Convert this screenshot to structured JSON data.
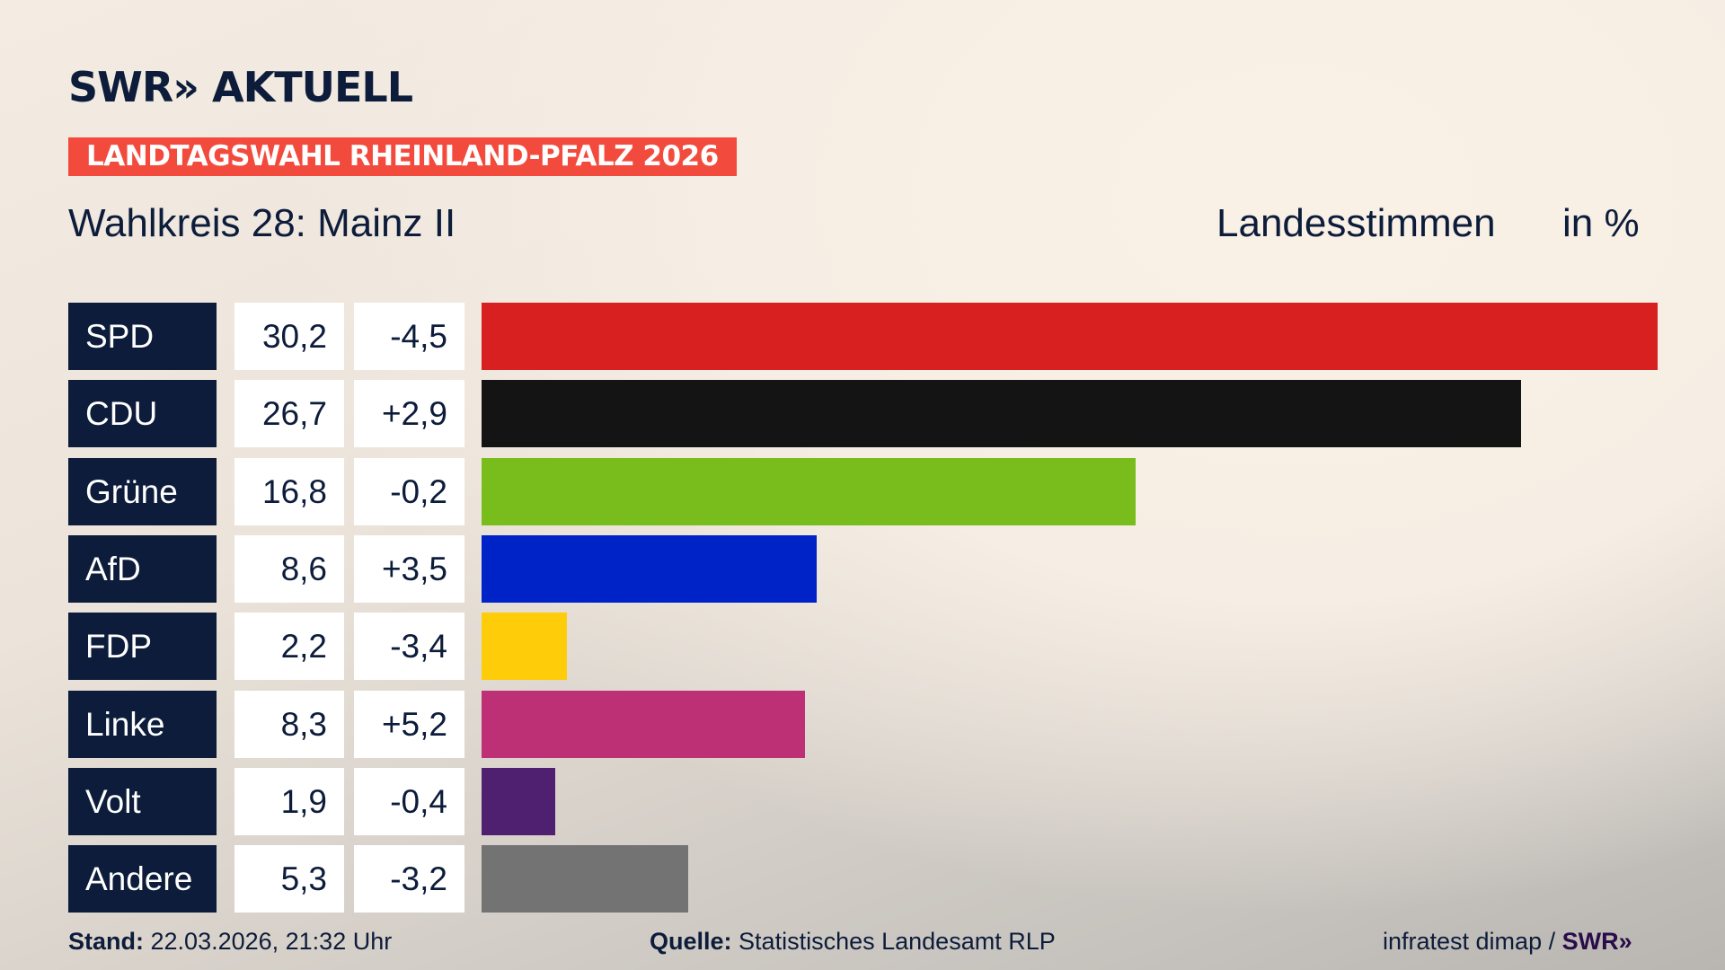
{
  "header": {
    "logo": "SWR» AKTUELL",
    "banner": "LANDTAGSWAHL RHEINLAND-PFALZ 2026",
    "subtitle": "Wahlkreis 28: Mainz II",
    "vote_type": "Landesstimmen",
    "unit": "in %"
  },
  "chart_data": {
    "type": "bar",
    "orientation": "horizontal",
    "categories": [
      "SPD",
      "CDU",
      "Grüne",
      "AfD",
      "FDP",
      "Linke",
      "Volt",
      "Andere"
    ],
    "values": [
      30.2,
      26.7,
      16.8,
      8.6,
      2.2,
      8.3,
      1.9,
      5.3
    ],
    "value_labels": [
      "30,2",
      "26,7",
      "16,8",
      "8,6",
      "2,2",
      "8,3",
      "1,9",
      "5,3"
    ],
    "changes": [
      "-4,5",
      "+2,9",
      "-0,2",
      "+3,5",
      "-3,4",
      "+5,2",
      "-0,4",
      "-3,2"
    ],
    "colors": [
      "#d82020",
      "#141414",
      "#79bd1c",
      "#0023c8",
      "#ffcc0a",
      "#bd3075",
      "#502070",
      "#737374"
    ],
    "xlim": [
      0,
      30.2
    ],
    "grid": false,
    "legend": "none"
  },
  "footer": {
    "stand_label": "Stand:",
    "stand_value": "22.03.2026, 21:32 Uhr",
    "source_label": "Quelle:",
    "source_value": "Statistisches Landesamt RLP",
    "credit": "infratest dimap / ",
    "credit_logo": "SWR»"
  }
}
